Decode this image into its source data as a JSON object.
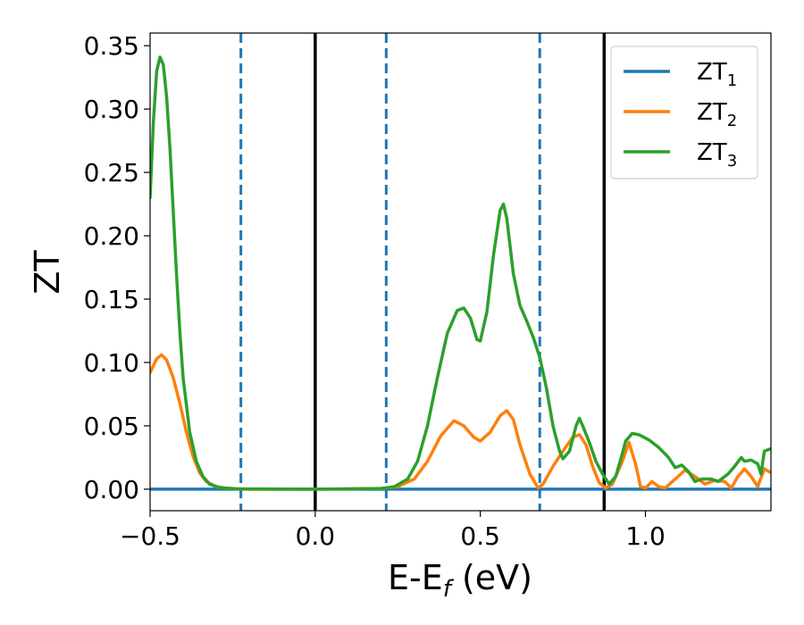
{
  "chart_data": {
    "type": "line",
    "xlabel": "E-E",
    "xlabel_sub": "f",
    "xlabel_unit": "(eV)",
    "ylabel": "ZT",
    "xlim": [
      -0.5,
      1.38
    ],
    "ylim": [
      -0.017,
      0.36
    ],
    "xticks": [
      -0.5,
      0.0,
      0.5,
      1.0
    ],
    "xtick_labels": [
      "−0.5",
      "0.0",
      "0.5",
      "1.0"
    ],
    "yticks": [
      0.0,
      0.05,
      0.1,
      0.15,
      0.2,
      0.25,
      0.3,
      0.35
    ],
    "ytick_labels": [
      "0.00",
      "0.05",
      "0.10",
      "0.15",
      "0.20",
      "0.25",
      "0.30",
      "0.35"
    ],
    "legend_position": "top-right",
    "vlines": [
      {
        "x": -0.225,
        "style": "dashed",
        "color": "#1f77b4"
      },
      {
        "x": 0.0,
        "style": "solid",
        "color": "#000000"
      },
      {
        "x": 0.215,
        "style": "dashed",
        "color": "#1f77b4"
      },
      {
        "x": 0.68,
        "style": "dashed",
        "color": "#1f77b4"
      },
      {
        "x": 0.875,
        "style": "solid",
        "color": "#000000"
      }
    ],
    "series": [
      {
        "name": "ZT",
        "name_sub": "1",
        "color": "#1f77b4",
        "points": [
          [
            -0.5,
            0.0
          ],
          [
            1.38,
            0.0
          ]
        ]
      },
      {
        "name": "ZT",
        "name_sub": "2",
        "color": "#ff7f0e",
        "points": [
          [
            -0.5,
            0.092
          ],
          [
            -0.48,
            0.103
          ],
          [
            -0.465,
            0.106
          ],
          [
            -0.45,
            0.102
          ],
          [
            -0.43,
            0.088
          ],
          [
            -0.41,
            0.068
          ],
          [
            -0.39,
            0.045
          ],
          [
            -0.37,
            0.026
          ],
          [
            -0.35,
            0.013
          ],
          [
            -0.33,
            0.006
          ],
          [
            -0.3,
            0.002
          ],
          [
            -0.26,
            0.0005
          ],
          [
            -0.2,
            0.0
          ],
          [
            0.0,
            0.0
          ],
          [
            0.2,
            0.0005
          ],
          [
            0.25,
            0.002
          ],
          [
            0.3,
            0.008
          ],
          [
            0.34,
            0.022
          ],
          [
            0.38,
            0.042
          ],
          [
            0.42,
            0.054
          ],
          [
            0.45,
            0.05
          ],
          [
            0.48,
            0.041
          ],
          [
            0.5,
            0.038
          ],
          [
            0.53,
            0.045
          ],
          [
            0.56,
            0.058
          ],
          [
            0.58,
            0.062
          ],
          [
            0.6,
            0.055
          ],
          [
            0.62,
            0.035
          ],
          [
            0.65,
            0.012
          ],
          [
            0.675,
            0.001
          ],
          [
            0.69,
            0.004
          ],
          [
            0.72,
            0.018
          ],
          [
            0.75,
            0.03
          ],
          [
            0.78,
            0.041
          ],
          [
            0.8,
            0.043
          ],
          [
            0.82,
            0.035
          ],
          [
            0.84,
            0.018
          ],
          [
            0.86,
            0.005
          ],
          [
            0.88,
            0.001
          ],
          [
            0.9,
            0.004
          ],
          [
            0.93,
            0.022
          ],
          [
            0.95,
            0.037
          ],
          [
            0.97,
            0.02
          ],
          [
            0.985,
            0.002
          ],
          [
            1.0,
            0.001
          ],
          [
            1.02,
            0.006
          ],
          [
            1.04,
            0.002
          ],
          [
            1.06,
            0.001
          ],
          [
            1.09,
            0.008
          ],
          [
            1.12,
            0.015
          ],
          [
            1.15,
            0.01
          ],
          [
            1.18,
            0.004
          ],
          [
            1.21,
            0.007
          ],
          [
            1.24,
            0.006
          ],
          [
            1.26,
            0.001
          ],
          [
            1.28,
            0.01
          ],
          [
            1.3,
            0.016
          ],
          [
            1.32,
            0.01
          ],
          [
            1.34,
            0.002
          ],
          [
            1.36,
            0.016
          ],
          [
            1.38,
            0.013
          ]
        ]
      },
      {
        "name": "ZT",
        "name_sub": "3",
        "color": "#2ca02c",
        "points": [
          [
            -0.5,
            0.23
          ],
          [
            -0.49,
            0.29
          ],
          [
            -0.48,
            0.33
          ],
          [
            -0.47,
            0.341
          ],
          [
            -0.46,
            0.335
          ],
          [
            -0.45,
            0.31
          ],
          [
            -0.44,
            0.27
          ],
          [
            -0.43,
            0.22
          ],
          [
            -0.42,
            0.17
          ],
          [
            -0.41,
            0.125
          ],
          [
            -0.4,
            0.088
          ],
          [
            -0.38,
            0.045
          ],
          [
            -0.36,
            0.022
          ],
          [
            -0.34,
            0.01
          ],
          [
            -0.32,
            0.004
          ],
          [
            -0.29,
            0.0012
          ],
          [
            -0.24,
            0.0003
          ],
          [
            0.0,
            0.0
          ],
          [
            0.2,
            0.0005
          ],
          [
            0.24,
            0.002
          ],
          [
            0.28,
            0.008
          ],
          [
            0.31,
            0.022
          ],
          [
            0.34,
            0.05
          ],
          [
            0.37,
            0.088
          ],
          [
            0.4,
            0.123
          ],
          [
            0.43,
            0.141
          ],
          [
            0.45,
            0.143
          ],
          [
            0.47,
            0.135
          ],
          [
            0.49,
            0.118
          ],
          [
            0.5,
            0.117
          ],
          [
            0.52,
            0.14
          ],
          [
            0.54,
            0.185
          ],
          [
            0.56,
            0.22
          ],
          [
            0.57,
            0.225
          ],
          [
            0.58,
            0.214
          ],
          [
            0.6,
            0.17
          ],
          [
            0.62,
            0.145
          ],
          [
            0.64,
            0.133
          ],
          [
            0.66,
            0.12
          ],
          [
            0.68,
            0.104
          ],
          [
            0.7,
            0.08
          ],
          [
            0.72,
            0.05
          ],
          [
            0.74,
            0.03
          ],
          [
            0.75,
            0.024
          ],
          [
            0.77,
            0.03
          ],
          [
            0.79,
            0.05
          ],
          [
            0.8,
            0.056
          ],
          [
            0.81,
            0.05
          ],
          [
            0.83,
            0.037
          ],
          [
            0.85,
            0.022
          ],
          [
            0.87,
            0.012
          ],
          [
            0.89,
            0.004
          ],
          [
            0.91,
            0.01
          ],
          [
            0.93,
            0.028
          ],
          [
            0.94,
            0.038
          ],
          [
            0.96,
            0.044
          ],
          [
            0.98,
            0.043
          ],
          [
            1.01,
            0.039
          ],
          [
            1.04,
            0.033
          ],
          [
            1.07,
            0.025
          ],
          [
            1.09,
            0.017
          ],
          [
            1.11,
            0.019
          ],
          [
            1.13,
            0.014
          ],
          [
            1.15,
            0.006
          ],
          [
            1.17,
            0.008
          ],
          [
            1.2,
            0.008
          ],
          [
            1.22,
            0.006
          ],
          [
            1.25,
            0.012
          ],
          [
            1.27,
            0.018
          ],
          [
            1.29,
            0.025
          ],
          [
            1.3,
            0.022
          ],
          [
            1.32,
            0.023
          ],
          [
            1.34,
            0.02
          ],
          [
            1.35,
            0.012
          ],
          [
            1.36,
            0.03
          ],
          [
            1.38,
            0.032
          ]
        ]
      }
    ]
  }
}
